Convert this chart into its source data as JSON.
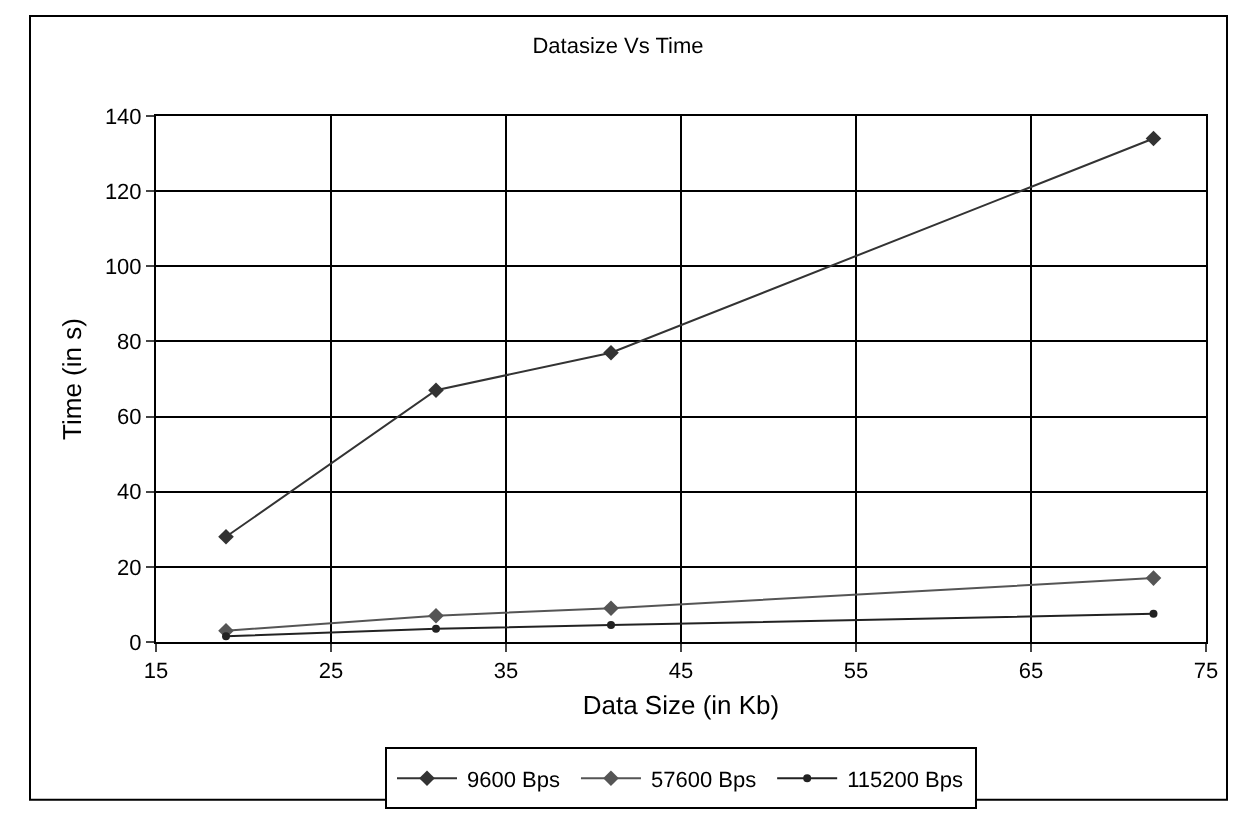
{
  "chart_data": {
    "type": "line",
    "title": "Datasize Vs Time",
    "xlabel": "Data Size (in Kb)",
    "ylabel": "Time (in s)",
    "x": [
      19,
      31,
      41,
      72
    ],
    "series": [
      {
        "name": "9600 Bps",
        "color": "#333333",
        "values": [
          28,
          67,
          77,
          134
        ]
      },
      {
        "name": "57600 Bps",
        "color": "#555555",
        "values": [
          3,
          7,
          9,
          17
        ]
      },
      {
        "name": "115200 Bps",
        "color": "#222222",
        "values": [
          1.5,
          3.5,
          4.5,
          7.5
        ],
        "marker": "circle"
      }
    ],
    "xlim": [
      15,
      75
    ],
    "xticks": [
      15,
      25,
      35,
      45,
      55,
      65,
      75
    ],
    "ylim": [
      0,
      140
    ],
    "yticks": [
      0,
      20,
      40,
      60,
      80,
      100,
      120,
      140
    ],
    "grid": true,
    "legend": "bottom",
    "marker": "diamond",
    "line_style": "solid"
  }
}
